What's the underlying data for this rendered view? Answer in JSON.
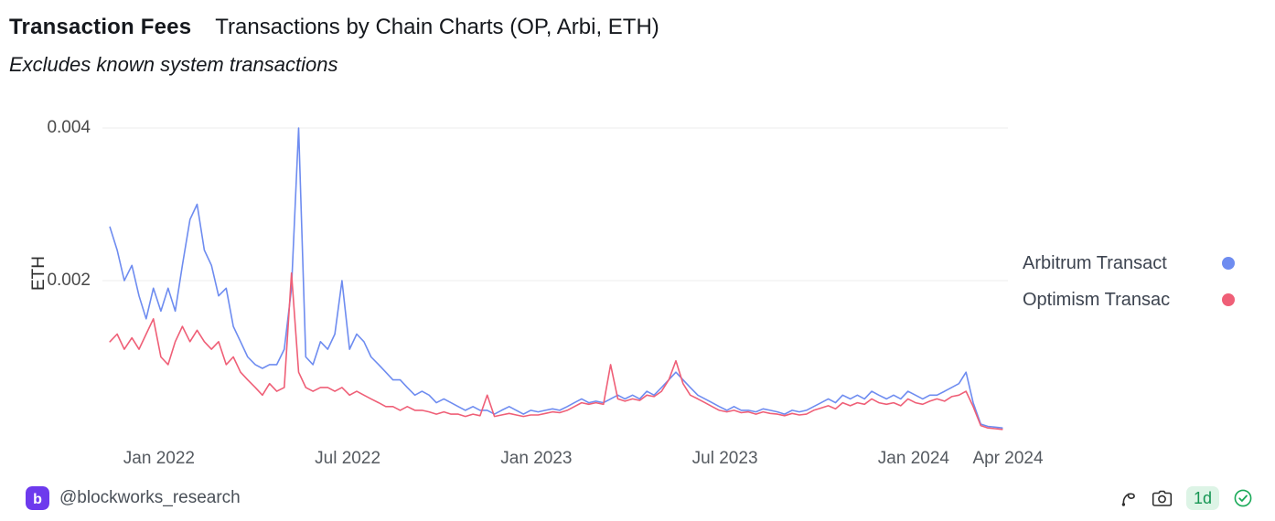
{
  "header": {
    "title": "Transaction Fees",
    "subtitle": "Transactions by Chain Charts (OP, Arbi, ETH)",
    "note": "Excludes known system transactions"
  },
  "legend": {
    "position": "right",
    "items": [
      {
        "label": "Arbitrum Transact",
        "color": "#6e8cf0"
      },
      {
        "label": "Optimism Transac",
        "color": "#ef5f77"
      }
    ]
  },
  "footer": {
    "handle": "@blockworks_research",
    "timeframe": "1d"
  },
  "icons": {
    "footer": [
      "blockworks-logo",
      "squiggle-icon",
      "camera-icon",
      "timeframe-badge",
      "verified-check-icon"
    ]
  },
  "colors": {
    "arbitrum_blue": "#6e8cf0",
    "optimism_red": "#ef5f77",
    "brand_purple": "#6d3aed",
    "badge_green": "#18a957",
    "badge_bg": "#ddf4e6",
    "gridline": "#ececec"
  },
  "chart_data": {
    "type": "line",
    "title": "Transaction Fees",
    "subtitle": "Transactions by Chain Charts (OP, Arbi, ETH)",
    "annotation": "Excludes known system transactions",
    "xlabel": "",
    "ylabel": "ETH",
    "x_unit": "decimal_year",
    "xlim": [
      2021.85,
      2024.25
    ],
    "ylim": [
      0,
      0.004
    ],
    "grid": "horizontal",
    "legend_position": "right",
    "y_ticks": [
      {
        "value": 0.002,
        "label": "0.002"
      },
      {
        "value": 0.004,
        "label": "0.004"
      }
    ],
    "x_ticks": [
      {
        "value": 2022.0,
        "label": "Jan 2022"
      },
      {
        "value": 2022.5,
        "label": "Jul 2022"
      },
      {
        "value": 2023.0,
        "label": "Jan 2023"
      },
      {
        "value": 2023.5,
        "label": "Jul 2023"
      },
      {
        "value": 2024.0,
        "label": "Jan 2024"
      },
      {
        "value": 2024.25,
        "label": "Apr 2024"
      }
    ],
    "x": [
      2021.87,
      2021.889,
      2021.908,
      2021.928,
      2021.947,
      2021.966,
      2021.985,
      2022.005,
      2022.024,
      2022.043,
      2022.062,
      2022.082,
      2022.101,
      2022.12,
      2022.139,
      2022.158,
      2022.178,
      2022.197,
      2022.216,
      2022.235,
      2022.255,
      2022.274,
      2022.293,
      2022.312,
      2022.332,
      2022.351,
      2022.37,
      2022.389,
      2022.408,
      2022.428,
      2022.447,
      2022.466,
      2022.485,
      2022.505,
      2022.524,
      2022.543,
      2022.562,
      2022.582,
      2022.601,
      2022.62,
      2022.639,
      2022.658,
      2022.678,
      2022.697,
      2022.716,
      2022.735,
      2022.755,
      2022.774,
      2022.793,
      2022.812,
      2022.832,
      2022.851,
      2022.87,
      2022.889,
      2022.908,
      2022.928,
      2022.947,
      2022.966,
      2022.985,
      2023.005,
      2023.024,
      2023.043,
      2023.062,
      2023.082,
      2023.101,
      2023.12,
      2023.139,
      2023.158,
      2023.178,
      2023.197,
      2023.216,
      2023.235,
      2023.255,
      2023.274,
      2023.293,
      2023.312,
      2023.332,
      2023.351,
      2023.37,
      2023.389,
      2023.408,
      2023.428,
      2023.447,
      2023.466,
      2023.485,
      2023.505,
      2023.524,
      2023.543,
      2023.562,
      2023.582,
      2023.601,
      2023.62,
      2023.639,
      2023.658,
      2023.678,
      2023.697,
      2023.716,
      2023.735,
      2023.755,
      2023.774,
      2023.793,
      2023.812,
      2023.832,
      2023.851,
      2023.87,
      2023.889,
      2023.908,
      2023.928,
      2023.947,
      2023.966,
      2023.985,
      2024.005,
      2024.024,
      2024.043,
      2024.062,
      2024.082,
      2024.101,
      2024.12,
      2024.139,
      2024.158,
      2024.178,
      2024.197,
      2024.216,
      2024.235
    ],
    "series": [
      {
        "name": "Arbitrum Transact",
        "color": "#6e8cf0",
        "values": [
          0.0027,
          0.0024,
          0.002,
          0.0022,
          0.0018,
          0.0015,
          0.0019,
          0.0016,
          0.0019,
          0.0016,
          0.0022,
          0.0028,
          0.003,
          0.0024,
          0.0022,
          0.0018,
          0.0019,
          0.0014,
          0.0012,
          0.001,
          0.0009,
          0.00085,
          0.0009,
          0.0009,
          0.0011,
          0.0019,
          0.004,
          0.001,
          0.0009,
          0.0012,
          0.0011,
          0.0013,
          0.002,
          0.0011,
          0.0013,
          0.0012,
          0.001,
          0.0009,
          0.0008,
          0.0007,
          0.0007,
          0.0006,
          0.0005,
          0.00055,
          0.0005,
          0.0004,
          0.00045,
          0.0004,
          0.00035,
          0.0003,
          0.00035,
          0.0003,
          0.0003,
          0.00025,
          0.0003,
          0.00035,
          0.0003,
          0.00025,
          0.0003,
          0.00028,
          0.0003,
          0.00032,
          0.0003,
          0.00035,
          0.0004,
          0.00045,
          0.0004,
          0.00042,
          0.0004,
          0.00045,
          0.0005,
          0.00045,
          0.0005,
          0.00045,
          0.00055,
          0.0005,
          0.0006,
          0.0007,
          0.0008,
          0.0007,
          0.0006,
          0.0005,
          0.00045,
          0.0004,
          0.00035,
          0.0003,
          0.00035,
          0.0003,
          0.0003,
          0.00028,
          0.00032,
          0.0003,
          0.00028,
          0.00025,
          0.0003,
          0.00028,
          0.0003,
          0.00035,
          0.0004,
          0.00045,
          0.0004,
          0.0005,
          0.00045,
          0.0005,
          0.00045,
          0.00055,
          0.0005,
          0.00045,
          0.0005,
          0.00045,
          0.00055,
          0.0005,
          0.00045,
          0.0005,
          0.0005,
          0.00055,
          0.0006,
          0.00065,
          0.0008,
          0.0004,
          0.00012,
          9e-05,
          8e-05,
          7e-05
        ]
      },
      {
        "name": "Optimism Transac",
        "color": "#ef5f77",
        "values": [
          0.0012,
          0.0013,
          0.0011,
          0.00125,
          0.0011,
          0.0013,
          0.0015,
          0.001,
          0.0009,
          0.0012,
          0.0014,
          0.0012,
          0.00135,
          0.0012,
          0.0011,
          0.0012,
          0.0009,
          0.001,
          0.0008,
          0.0007,
          0.0006,
          0.0005,
          0.00065,
          0.00055,
          0.0006,
          0.0021,
          0.0008,
          0.0006,
          0.00055,
          0.0006,
          0.0006,
          0.00055,
          0.0006,
          0.0005,
          0.00055,
          0.0005,
          0.00045,
          0.0004,
          0.00035,
          0.00035,
          0.0003,
          0.00035,
          0.0003,
          0.0003,
          0.00028,
          0.00025,
          0.00028,
          0.00025,
          0.00025,
          0.00022,
          0.00025,
          0.00023,
          0.0005,
          0.00022,
          0.00024,
          0.00026,
          0.00024,
          0.00022,
          0.00024,
          0.00024,
          0.00026,
          0.00028,
          0.00027,
          0.0003,
          0.00035,
          0.0004,
          0.00038,
          0.0004,
          0.00038,
          0.0009,
          0.00045,
          0.00042,
          0.00045,
          0.00043,
          0.0005,
          0.00048,
          0.00055,
          0.0007,
          0.00095,
          0.00065,
          0.0005,
          0.00045,
          0.0004,
          0.00035,
          0.0003,
          0.00028,
          0.0003,
          0.00027,
          0.00028,
          0.00025,
          0.00028,
          0.00026,
          0.00025,
          0.00023,
          0.00026,
          0.00024,
          0.00025,
          0.0003,
          0.00033,
          0.00036,
          0.00032,
          0.0004,
          0.00036,
          0.0004,
          0.00038,
          0.00045,
          0.0004,
          0.00038,
          0.0004,
          0.00036,
          0.00045,
          0.0004,
          0.00038,
          0.00042,
          0.00045,
          0.00042,
          0.00048,
          0.0005,
          0.00055,
          0.00035,
          0.0001,
          7e-05,
          6e-05,
          5e-05
        ]
      }
    ]
  }
}
